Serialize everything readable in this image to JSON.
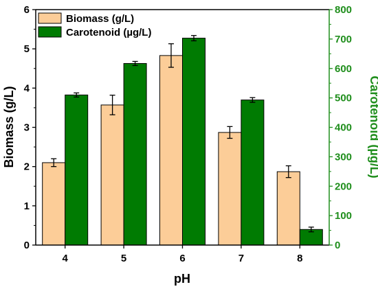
{
  "chart_data": {
    "type": "bar",
    "categories": [
      "4",
      "5",
      "6",
      "7",
      "8"
    ],
    "xlabel": "pH",
    "ylabel_left": "Biomass (g/L)",
    "ylabel_right": "Carotenoid (µg/L)",
    "ylim_left": [
      0,
      6
    ],
    "ylim_right": [
      0,
      800
    ],
    "yticks_left": [
      "0",
      "1",
      "2",
      "3",
      "4",
      "5",
      "6"
    ],
    "yticks_right": [
      "0",
      "100",
      "200",
      "300",
      "400",
      "500",
      "600",
      "700",
      "800"
    ],
    "grid": false,
    "legend_position": "top-left",
    "series": [
      {
        "name": "Biomass (g/L)",
        "axis": "left",
        "color": "#FCCD98",
        "values": [
          2.1,
          3.57,
          4.83,
          2.87,
          1.87
        ],
        "errors": [
          0.1,
          0.25,
          0.3,
          0.15,
          0.15
        ]
      },
      {
        "name": "Carotenoid (µg/L)",
        "axis": "right",
        "color": "#007B02",
        "values": [
          510,
          617,
          703,
          493,
          53
        ],
        "errors": [
          7,
          7,
          9,
          8,
          8
        ]
      }
    ],
    "colors": {
      "left_axis": "#000000",
      "right_axis": "#1F8E1C"
    }
  }
}
